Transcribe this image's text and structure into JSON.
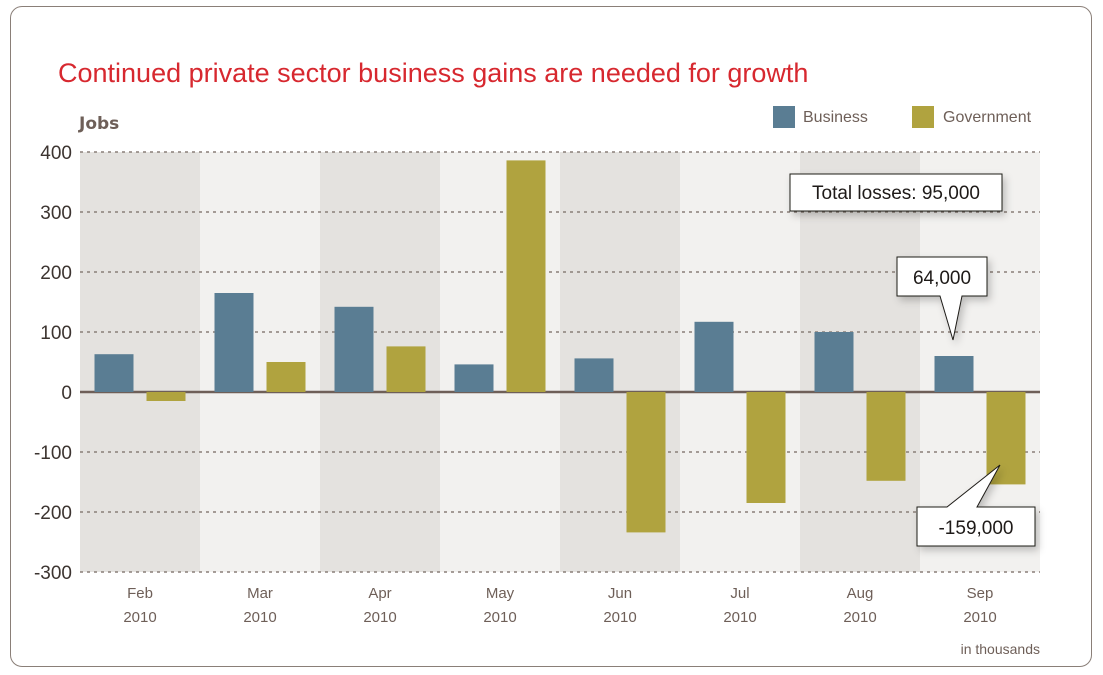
{
  "chart_data": {
    "type": "bar",
    "title": "Continued private sector business gains are needed for growth",
    "ylabel": "Jobs",
    "unit_note": "in thousands",
    "ylim": [
      -300,
      400
    ],
    "yticks": [
      400,
      300,
      200,
      100,
      0,
      -100,
      -200,
      -300
    ],
    "grid": true,
    "legend_position": "top-right",
    "categories": [
      [
        "Feb",
        "2010"
      ],
      [
        "Mar",
        "2010"
      ],
      [
        "Apr",
        "2010"
      ],
      [
        "May",
        "2010"
      ],
      [
        "Jun",
        "2010"
      ],
      [
        "Jul",
        "2010"
      ],
      [
        "Aug",
        "2010"
      ],
      [
        "Sep",
        "2010"
      ]
    ],
    "series": [
      {
        "name": "Business",
        "color": "#5a7d93",
        "values": [
          63,
          165,
          142,
          46,
          56,
          117,
          100,
          60
        ]
      },
      {
        "name": "Government",
        "color": "#b0a33f",
        "values": [
          -15,
          50,
          76,
          386,
          -234,
          -185,
          -148,
          -154
        ]
      }
    ],
    "annotations": [
      {
        "text": "Total losses: 95,000"
      },
      {
        "text": "64,000"
      },
      {
        "text": "-159,000"
      }
    ],
    "colors": {
      "title": "#d7282f",
      "band_dark": "#e4e2df",
      "band_light": "#f2f1ef",
      "grid": "#8a7f78",
      "zero_line": "#6e5f58"
    }
  }
}
